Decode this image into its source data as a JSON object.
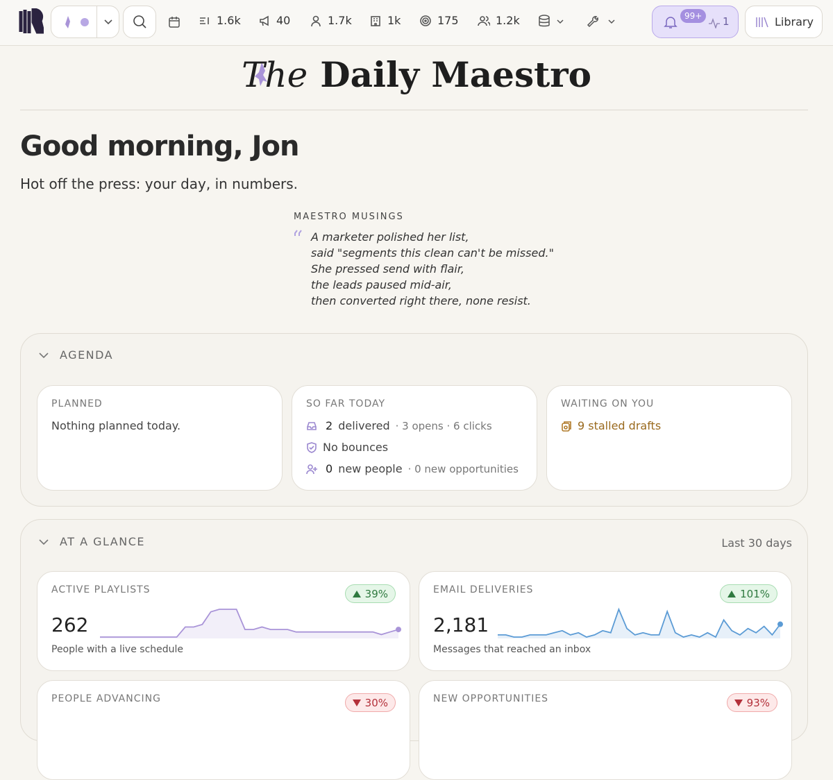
{
  "nav": {
    "stats": [
      "1.6k",
      "40",
      "1.7k",
      "1k",
      "175",
      "1.2k"
    ],
    "notifications_badge": "99+",
    "activity": "1",
    "library": "Library"
  },
  "masthead": {
    "the": "The",
    "title": "Daily Maestro"
  },
  "greeting": {
    "title": "Good morning, Jon",
    "subtitle": "Hot off the press: your day, in numbers."
  },
  "musings": {
    "label": "MAESTRO MUSINGS",
    "lines": [
      "A marketer polished her list,",
      "said \"segments this clean can't be missed.\"",
      "She pressed send with flair,",
      "the leads paused mid-air,",
      "then converted right there, none resist."
    ]
  },
  "agenda": {
    "title": "AGENDA",
    "planned": {
      "label": "PLANNED",
      "text": "Nothing planned today."
    },
    "so_far": {
      "label": "SO FAR TODAY",
      "delivered_count": "2",
      "delivered": "delivered",
      "delivered_detail": "· 3 opens · 6 clicks",
      "bounces": "No bounces",
      "people_count": "0",
      "people": "new people",
      "people_detail": "· 0 new opportunities"
    },
    "waiting": {
      "label": "WAITING ON YOU",
      "text": "9 stalled drafts"
    }
  },
  "glance": {
    "title": "AT A GLANCE",
    "period": "Last 30 days",
    "cards": [
      {
        "label": "ACTIVE PLAYLISTS",
        "change": "39%",
        "trend": "up",
        "value": "262",
        "caption": "People with a live schedule",
        "color": "#a994d8",
        "spark": [
          2,
          2,
          2,
          2,
          2,
          2,
          2,
          2,
          2,
          2,
          6,
          6,
          7,
          12,
          13,
          13,
          13,
          5,
          5,
          6,
          5,
          5,
          5,
          4,
          4,
          4,
          4,
          4,
          4,
          4,
          4,
          4,
          4,
          3,
          4,
          5
        ]
      },
      {
        "label": "EMAIL DELIVERIES",
        "change": "101%",
        "trend": "up",
        "value": "2,181",
        "caption": "Messages that reached an inbox",
        "color": "#5b9bd5",
        "spark": [
          5,
          5,
          4,
          4,
          5,
          5,
          5,
          6,
          7,
          5,
          6,
          4,
          5,
          7,
          6,
          17,
          8,
          5,
          6,
          5,
          5,
          16,
          6,
          4,
          5,
          4,
          6,
          4,
          12,
          7,
          5,
          8,
          6,
          9,
          5,
          10
        ]
      },
      {
        "label": "PEOPLE ADVANCING",
        "change": "30%",
        "trend": "down"
      },
      {
        "label": "NEW OPPORTUNITIES",
        "change": "93%",
        "trend": "down"
      }
    ]
  }
}
